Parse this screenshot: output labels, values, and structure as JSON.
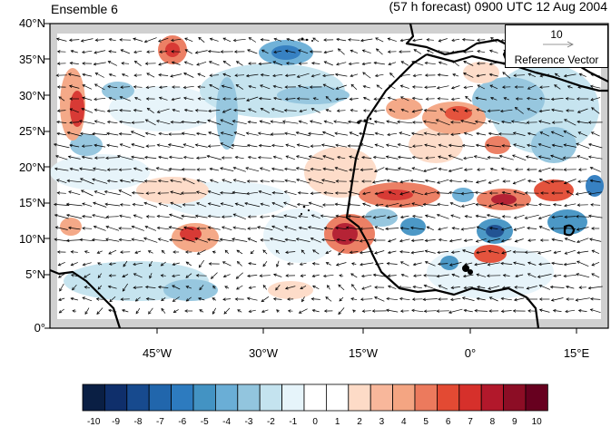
{
  "title_left": "Ensemble 6",
  "title_right": "(57 h forecast) 0900 UTC 12 Aug 2004",
  "y_ticks": [
    "40°N",
    "35°N",
    "30°N",
    "25°N",
    "20°N",
    "15°N",
    "10°N",
    "5°N",
    "0°"
  ],
  "x_ticks": [
    "45°W",
    "30°W",
    "15°W",
    "0°",
    "15°E"
  ],
  "reference_vector": {
    "value": "10",
    "label": "Reference Vector"
  },
  "colorbar": {
    "labels": [
      "-10",
      "-9",
      "-8",
      "-7",
      "-6",
      "-5",
      "-4",
      "-3",
      "-2",
      "-1",
      "0",
      "1",
      "2",
      "3",
      "4",
      "5",
      "6",
      "7",
      "8",
      "9",
      "10"
    ],
    "colors": [
      "#0a1f44",
      "#0f2f6b",
      "#174a8e",
      "#2166ac",
      "#2d7bbf",
      "#4393c3",
      "#6aaed6",
      "#92c5de",
      "#c4e3ef",
      "#e6f4fa",
      "#ffffff",
      "#ffffff",
      "#fddbc7",
      "#f8b79b",
      "#f4a582",
      "#ec7a5d",
      "#e34a33",
      "#d6302b",
      "#b2182b",
      "#8c0d25",
      "#67001f"
    ]
  },
  "colors": {
    "land_mask": "#d0d0d0",
    "coast": "#000000"
  }
}
